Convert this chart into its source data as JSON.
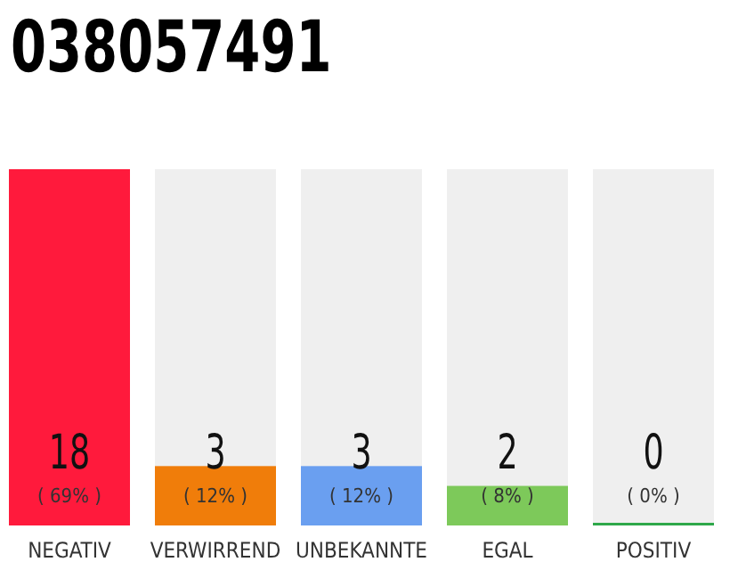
{
  "chart_data": {
    "type": "bar",
    "title": "038057491",
    "categories": [
      "NEGATIV",
      "VERWIRREND",
      "UNBEKANNTE",
      "EGAL",
      "POSITIV"
    ],
    "values": [
      18,
      3,
      3,
      2,
      0
    ],
    "colors": [
      "#ff1a3c",
      "#f07d0a",
      "#6a9ff0",
      "#7dc95a",
      "#2ea84a"
    ],
    "data_labels": true,
    "annotations": [
      "( 69% )",
      "( 12% )",
      "( 12% )",
      "( 8% )",
      "( 0% )"
    ]
  }
}
